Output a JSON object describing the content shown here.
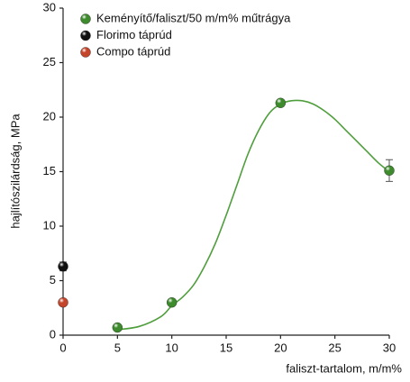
{
  "chart_data": {
    "type": "scatter",
    "xlabel": "faliszt-tartalom, m/m%",
    "ylabel": "hajlítószilárdság, MPa",
    "xlim": [
      0,
      30
    ],
    "ylim": [
      0,
      30
    ],
    "xticks": [
      0,
      5,
      10,
      15,
      20,
      25,
      30
    ],
    "yticks": [
      0,
      5,
      10,
      15,
      20,
      25,
      30
    ],
    "grid": false,
    "legend": "upper left",
    "series": [
      {
        "name": "Keményítő/faliszt/50 m/m% műtrágya",
        "color": "#3d8b2c",
        "x": [
          5,
          10,
          20,
          30
        ],
        "values": [
          0.7,
          3.0,
          21.3,
          15.1
        ],
        "errors": [
          0.1,
          0.2,
          0.3,
          1.0
        ]
      },
      {
        "name": "Florimo táprúd",
        "color": "#111111",
        "x": [
          0
        ],
        "values": [
          6.3
        ],
        "errors": [
          0.4
        ]
      },
      {
        "name": "Compo táprúd",
        "color": "#c4452a",
        "x": [
          0
        ],
        "values": [
          3.0
        ],
        "errors": [
          0.2
        ]
      }
    ],
    "trend": {
      "color": "#4f9e3c",
      "x": [
        5,
        7,
        9,
        10,
        11,
        12,
        13,
        14,
        15,
        16,
        17,
        18,
        19,
        20,
        21,
        22,
        23,
        24,
        25,
        26,
        27,
        28,
        29,
        30
      ],
      "values": [
        0.5,
        0.8,
        1.7,
        2.7,
        3.5,
        4.6,
        6.3,
        8.4,
        11,
        13.8,
        16.6,
        18.8,
        20.4,
        21.2,
        21.5,
        21.5,
        21.2,
        20.6,
        19.8,
        18.8,
        17.8,
        16.8,
        15.8,
        15.0
      ]
    }
  }
}
